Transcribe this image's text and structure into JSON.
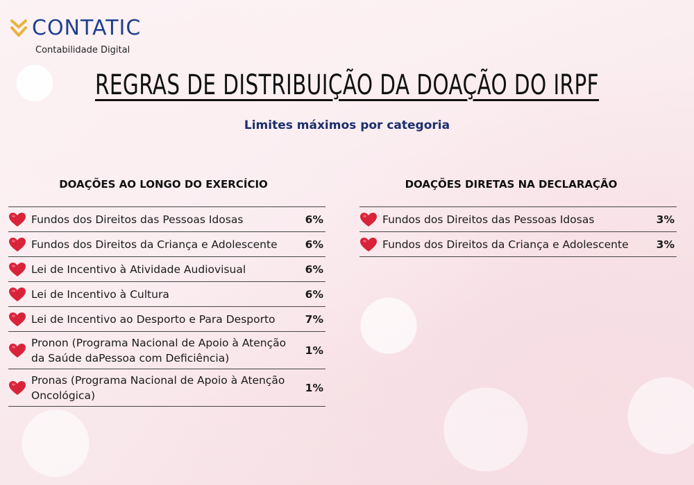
{
  "brand": {
    "name": "CONTATIC",
    "tagline": "Contabilidade Digital"
  },
  "title": "REGRAS DE DISTRIBUIÇÃO DA DOAÇÃO DO IRPF",
  "subtitle": "Limites máximos por categoria",
  "colors": {
    "brand_blue": "#1f3f8f",
    "logo_gold": "#e9b23f",
    "heart_red": "#d8233a",
    "subtitle_navy": "#1c2e6b"
  },
  "left": {
    "heading": "DOAÇÕES AO LONGO DO EXERCÍCIO",
    "rows": [
      {
        "label": "Fundos dos Direitos das Pessoas Idosas",
        "pct": "6%"
      },
      {
        "label": "Fundos dos Direitos da Criança e Adolescente",
        "pct": "6%"
      },
      {
        "label": "Lei de Incentivo à Atividade Audiovisual",
        "pct": "6%"
      },
      {
        "label": "Lei de Incentivo à Cultura",
        "pct": "6%"
      },
      {
        "label": "Lei de Incentivo ao Desporto e Para Desporto",
        "pct": "7%"
      },
      {
        "label": "Pronon (Programa Nacional de Apoio à Atenção da Saúde daPessoa com Deficiência)",
        "pct": "1%"
      },
      {
        "label": "Pronas (Programa Nacional de Apoio à Atenção Oncológica)",
        "pct": "1%"
      }
    ]
  },
  "right": {
    "heading": "DOAÇÕES DIRETAS NA DECLARAÇÃO",
    "rows": [
      {
        "label": "Fundos dos Direitos das Pessoas Idosas",
        "pct": "3%"
      },
      {
        "label": "Fundos dos Direitos da Criança e Adolescente",
        "pct": "3%"
      }
    ]
  }
}
